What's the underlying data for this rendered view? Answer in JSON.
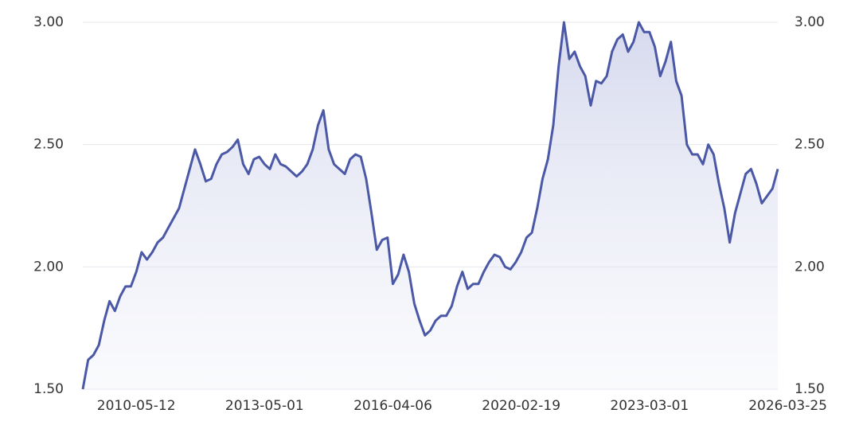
{
  "chart_data": {
    "type": "area",
    "categories": [
      null,
      null,
      null,
      null,
      null,
      null,
      null,
      null,
      null,
      null,
      "2010-05-12",
      null,
      null,
      null,
      null,
      null,
      null,
      null,
      null,
      null,
      null,
      null,
      null,
      null,
      null,
      null,
      null,
      null,
      null,
      null,
      null,
      null,
      null,
      null,
      "2013-05-01",
      null,
      null,
      null,
      null,
      null,
      null,
      null,
      null,
      null,
      null,
      null,
      null,
      null,
      null,
      null,
      null,
      null,
      null,
      null,
      null,
      null,
      null,
      null,
      "2016-04-06",
      null,
      null,
      null,
      null,
      null,
      null,
      null,
      null,
      null,
      null,
      null,
      null,
      null,
      null,
      null,
      null,
      null,
      null,
      null,
      null,
      null,
      null,
      null,
      "2020-02-19",
      null,
      null,
      null,
      null,
      null,
      null,
      null,
      null,
      null,
      null,
      null,
      null,
      null,
      null,
      null,
      null,
      null,
      null,
      null,
      null,
      null,
      null,
      null,
      "2023-03-01",
      null,
      null,
      null,
      null,
      null,
      null,
      null,
      null,
      null,
      null,
      null,
      null,
      null,
      null,
      null,
      null,
      null,
      null,
      null,
      null,
      null,
      null,
      null,
      "2026-03-25"
    ],
    "series": [
      {
        "color": "#4a58a6",
        "values": [
          1.5,
          1.62,
          1.64,
          1.68,
          1.78,
          1.86,
          1.82,
          1.88,
          1.92,
          1.92,
          1.98,
          2.06,
          2.03,
          2.06,
          2.1,
          2.12,
          2.16,
          2.2,
          2.24,
          2.32,
          2.4,
          2.48,
          2.42,
          2.35,
          2.36,
          2.42,
          2.46,
          2.47,
          2.49,
          2.52,
          2.42,
          2.38,
          2.44,
          2.45,
          2.42,
          2.4,
          2.46,
          2.42,
          2.41,
          2.39,
          2.37,
          2.39,
          2.42,
          2.48,
          2.58,
          2.64,
          2.48,
          2.42,
          2.4,
          2.38,
          2.44,
          2.46,
          2.45,
          2.36,
          2.22,
          2.07,
          2.11,
          2.12,
          1.93,
          1.97,
          2.05,
          1.98,
          1.85,
          1.78,
          1.72,
          1.74,
          1.78,
          1.8,
          1.8,
          1.84,
          1.92,
          1.98,
          1.91,
          1.93,
          1.93,
          1.98,
          2.02,
          2.05,
          2.04,
          2.0,
          1.99,
          2.02,
          2.06,
          2.12,
          2.14,
          2.24,
          2.36,
          2.44,
          2.58,
          2.82,
          3.0,
          2.85,
          2.88,
          2.82,
          2.78,
          2.66,
          2.76,
          2.75,
          2.78,
          2.88,
          2.93,
          2.95,
          2.88,
          2.92,
          3.0,
          2.96,
          2.96,
          2.9,
          2.78,
          2.84,
          2.92,
          2.76,
          2.7,
          2.5,
          2.46,
          2.46,
          2.42,
          2.5,
          2.46,
          2.34,
          2.24,
          2.1,
          2.22,
          2.3,
          2.38,
          2.4,
          2.34,
          2.26,
          2.29,
          2.32,
          2.4
        ]
      }
    ],
    "ylim": [
      1.5,
      3.0
    ],
    "yticks": [
      {
        "value": 1.5,
        "label": "1.50"
      },
      {
        "value": 2.0,
        "label": "2.00"
      },
      {
        "value": 2.5,
        "label": "2.50"
      },
      {
        "value": 3.0,
        "label": "3.00"
      }
    ],
    "y2lim": [
      1.5,
      3.0
    ],
    "y2ticks": [
      {
        "value": 1.5,
        "label": "1.50"
      },
      {
        "value": 2.0,
        "label": "2.00"
      },
      {
        "value": 2.5,
        "label": "2.50"
      },
      {
        "value": 3.0,
        "label": "3.00"
      }
    ],
    "grid": true
  }
}
